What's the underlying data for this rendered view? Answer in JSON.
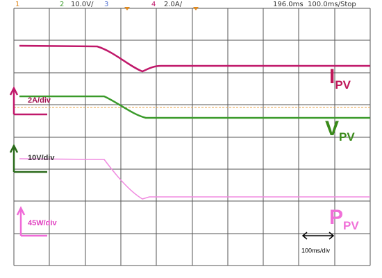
{
  "header": {
    "ch1": "1",
    "ch2": "2",
    "ch2_scale": "10.0V/",
    "ch3": "3",
    "ch4": "4",
    "ch4_scale": "2.0A/",
    "delay": "196.0ms",
    "timebase": "100.0ms/",
    "status": "Stop"
  },
  "traces": [
    {
      "symbol": "I",
      "subscript": "PV",
      "scale": "2A/div"
    },
    {
      "symbol": "V",
      "subscript": "PV",
      "scale": "10V/div"
    },
    {
      "symbol": "P",
      "subscript": "PV",
      "scale": "45W/div"
    }
  ],
  "time_scale": "100ms/div"
}
